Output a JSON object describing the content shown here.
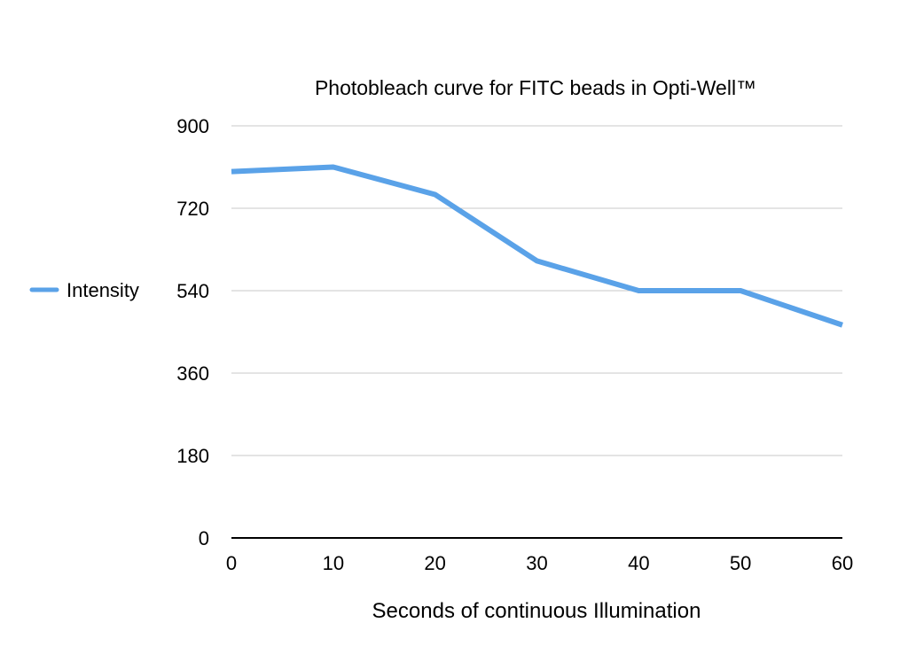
{
  "chart_data": {
    "type": "line",
    "title": "Photobleach curve for FITC beads in Opti-Well™",
    "xlabel": "Seconds of continuous Illumination",
    "ylabel": "",
    "x": [
      0,
      10,
      20,
      30,
      40,
      50,
      60
    ],
    "x_ticks": [
      "0",
      "10",
      "20",
      "30",
      "40",
      "50",
      "60"
    ],
    "y_ticks": [
      "0",
      "180",
      "360",
      "540",
      "720",
      "900"
    ],
    "xlim": [
      0,
      60
    ],
    "ylim": [
      0,
      900
    ],
    "grid": true,
    "legend_position": "left",
    "series": [
      {
        "name": "Intensity",
        "color": "#5aa2e8",
        "values": [
          800,
          810,
          750,
          605,
          540,
          540,
          465
        ]
      }
    ]
  }
}
